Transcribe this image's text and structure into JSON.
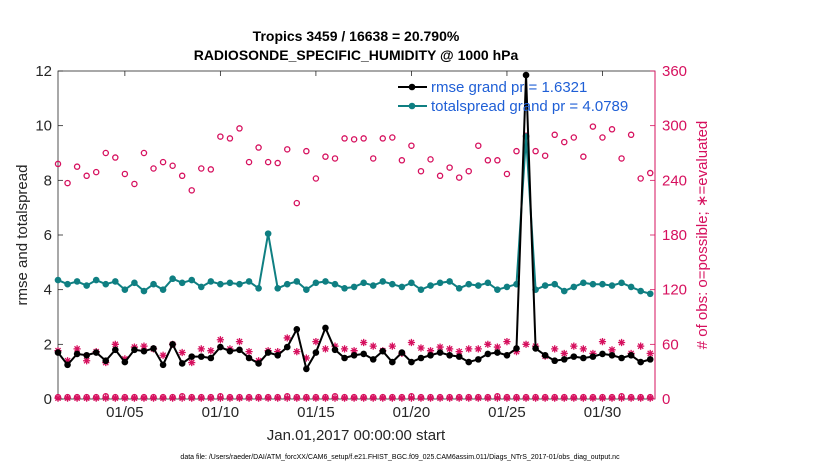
{
  "chart_data": {
    "type": "line",
    "title_line1": "Tropics 3459 / 16638 = 20.790%",
    "title_line2": "RADIOSONDE_SPECIFIC_HUMIDITY @ 1000 hPa",
    "xlabel": "Jan.01,2017 00:00:00 start",
    "ylabel": "rmse and totalspread",
    "ylabel_right": "# of obs: o=possible; ∗=evaluated",
    "footnote": "data file: /Users/raeder/DAI/ATM_forcXX/CAM6_setup/f.e21.FHIST_BGC.f09_025.CAM6assim.011/Diags_NTrS_2017-01/obs_diag_output.nc",
    "xlim": [
      0.5,
      31.75
    ],
    "ylim": [
      0,
      12
    ],
    "ylim_right": [
      0,
      360
    ],
    "x_ticks": [
      4,
      9,
      14,
      19,
      24,
      29
    ],
    "x_tick_labels": [
      "01/05",
      "01/10",
      "01/15",
      "01/20",
      "01/25",
      "01/30"
    ],
    "y_ticks": [
      0,
      2,
      4,
      6,
      8,
      10,
      12
    ],
    "y_tick_labels": [
      "0",
      "2",
      "4",
      "6",
      "8",
      "10",
      "12"
    ],
    "y_ticks_right": [
      0,
      60,
      120,
      180,
      240,
      300,
      360
    ],
    "y_tick_labels_right": [
      "0",
      "60",
      "120",
      "180",
      "240",
      "300",
      "360"
    ],
    "x": [
      0.5,
      1.0,
      1.5,
      2.0,
      2.5,
      3.0,
      3.5,
      4.0,
      4.5,
      5.0,
      5.5,
      6.0,
      6.5,
      7.0,
      7.5,
      8.0,
      8.5,
      9.0,
      9.5,
      10.0,
      10.5,
      11.0,
      11.5,
      12.0,
      12.5,
      13.0,
      13.5,
      14.0,
      14.5,
      15.0,
      15.5,
      16.0,
      16.5,
      17.0,
      17.5,
      18.0,
      18.5,
      19.0,
      19.5,
      20.0,
      20.5,
      21.0,
      21.5,
      22.0,
      22.5,
      23.0,
      23.5,
      24.0,
      24.5,
      25.0,
      25.5,
      26.0,
      26.5,
      27.0,
      27.5,
      28.0,
      28.5,
      29.0,
      29.5,
      30.0,
      30.5,
      31.0,
      31.5
    ],
    "series": [
      {
        "name": "rmse grand pr = 1.6321",
        "color": "#000000",
        "marker": "dot",
        "values": [
          1.7,
          1.25,
          1.65,
          1.6,
          1.7,
          1.4,
          1.8,
          1.35,
          1.8,
          1.75,
          1.85,
          1.25,
          2.0,
          1.3,
          1.55,
          1.55,
          1.5,
          1.9,
          1.75,
          1.8,
          1.5,
          1.3,
          1.7,
          1.6,
          1.9,
          2.55,
          1.1,
          1.7,
          2.6,
          1.8,
          1.5,
          1.6,
          1.65,
          1.45,
          1.75,
          1.35,
          1.7,
          1.35,
          1.5,
          1.6,
          1.7,
          1.6,
          1.55,
          1.35,
          1.45,
          1.65,
          1.7,
          1.6,
          1.85,
          11.85,
          1.85,
          1.6,
          1.4,
          1.45,
          1.55,
          1.5,
          1.55,
          1.65,
          1.6,
          1.5,
          1.6,
          1.35,
          1.45
        ]
      },
      {
        "name": "totalspread grand pr = 4.0789",
        "color": "#0f7f82",
        "marker": "dot",
        "values": [
          4.35,
          4.2,
          4.3,
          4.15,
          4.35,
          4.2,
          4.3,
          4.0,
          4.25,
          3.95,
          4.2,
          4.0,
          4.4,
          4.25,
          4.35,
          4.1,
          4.3,
          4.2,
          4.25,
          4.2,
          4.3,
          4.05,
          6.05,
          4.05,
          4.2,
          4.3,
          4.0,
          4.25,
          4.3,
          4.2,
          4.05,
          4.1,
          4.25,
          4.15,
          4.3,
          4.2,
          4.1,
          4.25,
          4.0,
          4.15,
          4.25,
          4.3,
          4.05,
          4.2,
          4.15,
          4.25,
          4.0,
          4.1,
          4.2,
          9.6,
          4.0,
          4.15,
          4.2,
          3.95,
          4.1,
          4.25,
          4.2,
          4.2,
          4.15,
          4.25,
          4.1,
          3.95,
          3.85
        ]
      }
    ],
    "obs_possible": [
      258,
      237,
      255,
      245,
      249,
      270,
      265,
      247,
      236,
      270,
      253,
      260,
      256,
      245,
      229,
      253,
      252,
      288,
      286,
      297,
      260,
      276,
      260,
      259,
      274,
      215,
      272,
      242,
      266,
      264,
      286,
      285,
      286,
      264,
      286,
      287,
      262,
      278,
      250,
      263,
      245,
      254,
      243,
      250,
      278,
      262,
      262,
      247,
      272,
      289,
      272,
      267,
      290,
      282,
      287,
      266,
      299,
      287,
      296,
      264,
      290,
      242,
      248
    ],
    "obs_evaluated": [
      53,
      42,
      55,
      42,
      52,
      40,
      60,
      44,
      57,
      58,
      55,
      48,
      60,
      51,
      40,
      55,
      53,
      65,
      55,
      63,
      52,
      42,
      53,
      52,
      67,
      52,
      45,
      63,
      55,
      58,
      55,
      53,
      62,
      58,
      53,
      58,
      50,
      62,
      56,
      53,
      57,
      55,
      52,
      55,
      55,
      60,
      57,
      63,
      52,
      60,
      58,
      47,
      55,
      50,
      58,
      55,
      50,
      63,
      54,
      62,
      50,
      58,
      50
    ],
    "obs_zero_possible": [
      2,
      2,
      2,
      2,
      2,
      3,
      2,
      2,
      2,
      2,
      2,
      2,
      2,
      3,
      2,
      2,
      2,
      3,
      2,
      2,
      2,
      2,
      2,
      2,
      3,
      2,
      2,
      2,
      2,
      3,
      2,
      2,
      2,
      2,
      2,
      2,
      2,
      3,
      2,
      2,
      2,
      2,
      2,
      2,
      2,
      2,
      3,
      2,
      2,
      2,
      2,
      2,
      2,
      2,
      2,
      2,
      2,
      2,
      2,
      3,
      2,
      2,
      2
    ],
    "obs_zero_evaluated": [
      1,
      1,
      1,
      1,
      1,
      1,
      1,
      1,
      1,
      1,
      1,
      1,
      1,
      1,
      1,
      1,
      1,
      1,
      1,
      1,
      1,
      1,
      1,
      1,
      1,
      1,
      1,
      1,
      1,
      1,
      1,
      1,
      1,
      1,
      1,
      1,
      1,
      1,
      1,
      1,
      1,
      1,
      1,
      1,
      1,
      1,
      1,
      1,
      1,
      1,
      1,
      1,
      1,
      1,
      1,
      1,
      1,
      1,
      1,
      1,
      1,
      1,
      1
    ],
    "obs_color": "#d6105e"
  }
}
